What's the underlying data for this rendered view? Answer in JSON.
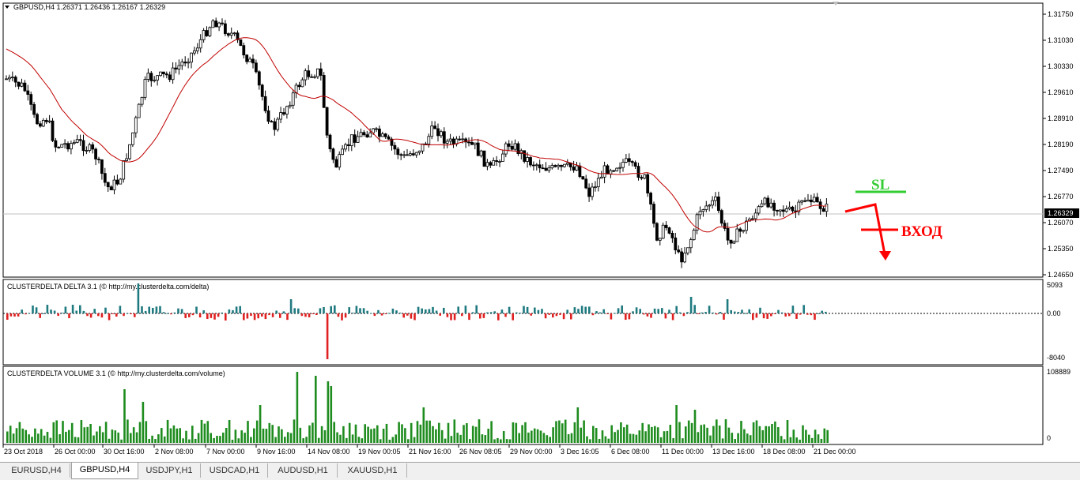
{
  "main_chart": {
    "title": "GBPUSD,H4  1.26371 1.26436 1.26167 1.26329",
    "price_labels": [
      "1.31750",
      "1.31030",
      "1.30330",
      "1.29610",
      "1.28910",
      "1.28190",
      "1.27490",
      "1.26770",
      "1.26070",
      "1.25350",
      "1.24650"
    ],
    "current_price": "1.26329",
    "sl_label": "SL",
    "entry_label": "ВХОД",
    "ma_color": "#c00000",
    "sl_color": "#33cc33",
    "entry_color": "#ff0000"
  },
  "delta_panel": {
    "title": "CLUSTERDELTA DELTA 3.1 (© http://my.clusterdelta.com/delta)",
    "scale_labels": [
      "5093",
      "0.00",
      "-8040"
    ],
    "positive_color": "#1f7a80",
    "negative_color": "#e02020"
  },
  "volume_panel": {
    "title": "CLUSTERDELTA VOLUME 3.1 (© http://my.clusterdelta.com/volume)",
    "scale_labels": [
      "108889",
      "0"
    ],
    "bar_color": "#1e8c1e"
  },
  "time_labels": [
    "23 Oct 2018",
    "26 Oct 00:00",
    "30 Oct 16:00",
    "2 Nov 08:00",
    "7 Nov 00:00",
    "9 Nov 16:00",
    "14 Nov 08:00",
    "19 Nov 00:05",
    "21 Nov 16:00",
    "26 Nov 08:05",
    "29 Nov 00:00",
    "3 Dec 16:05",
    "6 Dec 08:00",
    "11 Dec 00:00",
    "13 Dec 16:00",
    "18 Dec 08:00",
    "21 Dec 00:00"
  ],
  "tabs": [
    {
      "label": "EURUSD,H4",
      "active": false
    },
    {
      "label": "GBPUSD,H4",
      "active": true
    },
    {
      "label": "USDJPY,H1",
      "active": false
    },
    {
      "label": "USDCAD,H1",
      "active": false
    },
    {
      "label": "AUDUSD,H1",
      "active": false
    },
    {
      "label": "XAUUSD,H1",
      "active": false
    }
  ]
}
